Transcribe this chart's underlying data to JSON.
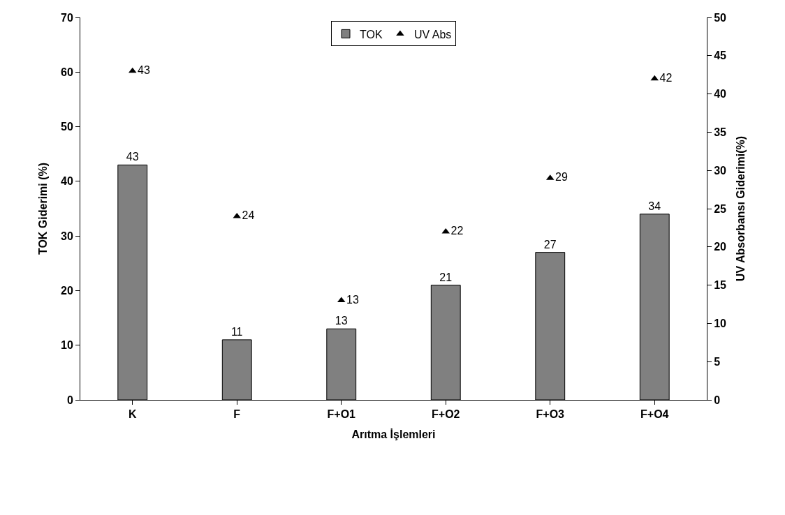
{
  "chart_data": {
    "type": "bar",
    "xlabel": "Arıtma İşlemleri",
    "ylabel": "TOK Giderimi (%)",
    "y2label": "UV Absorbansı Giderimi(%)",
    "categories": [
      "K",
      "F",
      "F+O1",
      "F+O2",
      "F+O3",
      "F+O4"
    ],
    "series": [
      {
        "name": "TOK",
        "color": "#808080",
        "values": [
          43,
          11,
          13,
          21,
          27,
          34
        ]
      },
      {
        "name": "UV Abs",
        "type": "scatter",
        "axis": "y2",
        "marker": "triangle",
        "color": "#000000",
        "values": [
          43,
          24,
          13,
          22,
          29,
          42
        ]
      }
    ],
    "ylim": [
      0,
      70
    ],
    "yticks": [
      0,
      10,
      20,
      30,
      40,
      50,
      60,
      70
    ],
    "y2lim": [
      0,
      50
    ],
    "y2ticks": [
      0,
      5,
      10,
      15,
      20,
      25,
      30,
      35,
      40,
      45,
      50
    ],
    "data_labels": true,
    "grid": false,
    "legend": "top"
  }
}
